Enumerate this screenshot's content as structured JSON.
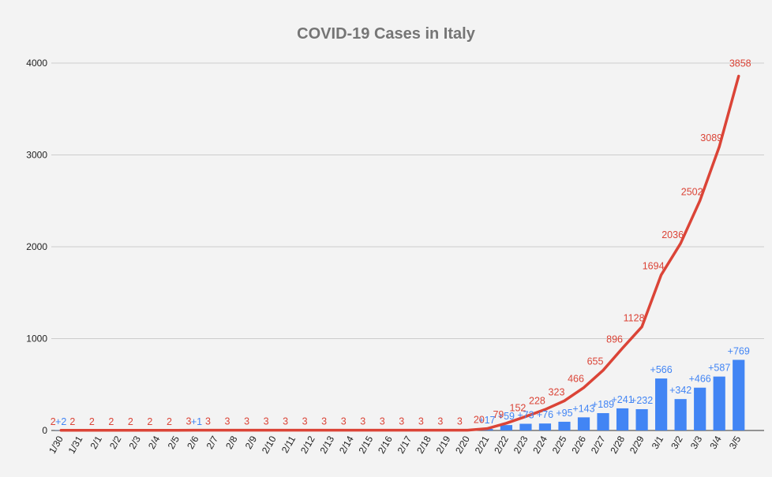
{
  "chart_data": {
    "type": "bar+line",
    "title": "COVID-19 Cases in Italy",
    "xlabel": "",
    "ylabel": "",
    "ylim": [
      0,
      4000
    ],
    "yticks": [
      0,
      1000,
      2000,
      3000,
      4000
    ],
    "grid": true,
    "legend": "none",
    "categories": [
      "1/30",
      "1/31",
      "2/1",
      "2/2",
      "2/3",
      "2/4",
      "2/5",
      "2/6",
      "2/7",
      "2/8",
      "2/9",
      "2/10",
      "2/11",
      "2/12",
      "2/13",
      "2/14",
      "2/15",
      "2/16",
      "2/17",
      "2/18",
      "2/19",
      "2/20",
      "2/21",
      "2/22",
      "2/23",
      "2/24",
      "2/25",
      "2/26",
      "2/27",
      "2/28",
      "2/29",
      "3/1",
      "3/2",
      "3/3",
      "3/4",
      "3/5"
    ],
    "series": [
      {
        "type": "bar",
        "color": "#4285f4",
        "values": [
          2,
          0,
          0,
          0,
          0,
          0,
          0,
          1,
          0,
          0,
          0,
          0,
          0,
          0,
          0,
          0,
          0,
          0,
          0,
          0,
          0,
          0,
          17,
          59,
          73,
          76,
          95,
          143,
          189,
          241,
          232,
          566,
          342,
          466,
          587,
          769
        ],
        "labels": [
          "+2",
          "",
          "",
          "",
          "",
          "",
          "",
          "+1",
          "",
          "",
          "",
          "",
          "",
          "",
          "",
          "",
          "",
          "",
          "",
          "",
          "",
          "",
          "+17",
          "+59",
          "+73",
          "+76",
          "+95",
          "+143",
          "+189",
          "+241",
          "+232",
          "+566",
          "+342",
          "+466",
          "+587",
          "+769"
        ]
      },
      {
        "type": "line",
        "color": "#db4437",
        "values": [
          2,
          2,
          2,
          2,
          2,
          2,
          2,
          3,
          3,
          3,
          3,
          3,
          3,
          3,
          3,
          3,
          3,
          3,
          3,
          3,
          3,
          3,
          20,
          79,
          152,
          228,
          323,
          466,
          655,
          896,
          1128,
          1694,
          2036,
          2502,
          3089,
          3858
        ],
        "labels": [
          "2",
          "2",
          "2",
          "2",
          "2",
          "2",
          "2",
          "3",
          "3",
          "3",
          "3",
          "3",
          "3",
          "3",
          "3",
          "3",
          "3",
          "3",
          "3",
          "3",
          "3",
          "3",
          "20",
          "79",
          "152",
          "228",
          "323",
          "466",
          "655",
          "896",
          "1128",
          "1694",
          "2036",
          "2502",
          "3089",
          "3858"
        ]
      }
    ]
  }
}
